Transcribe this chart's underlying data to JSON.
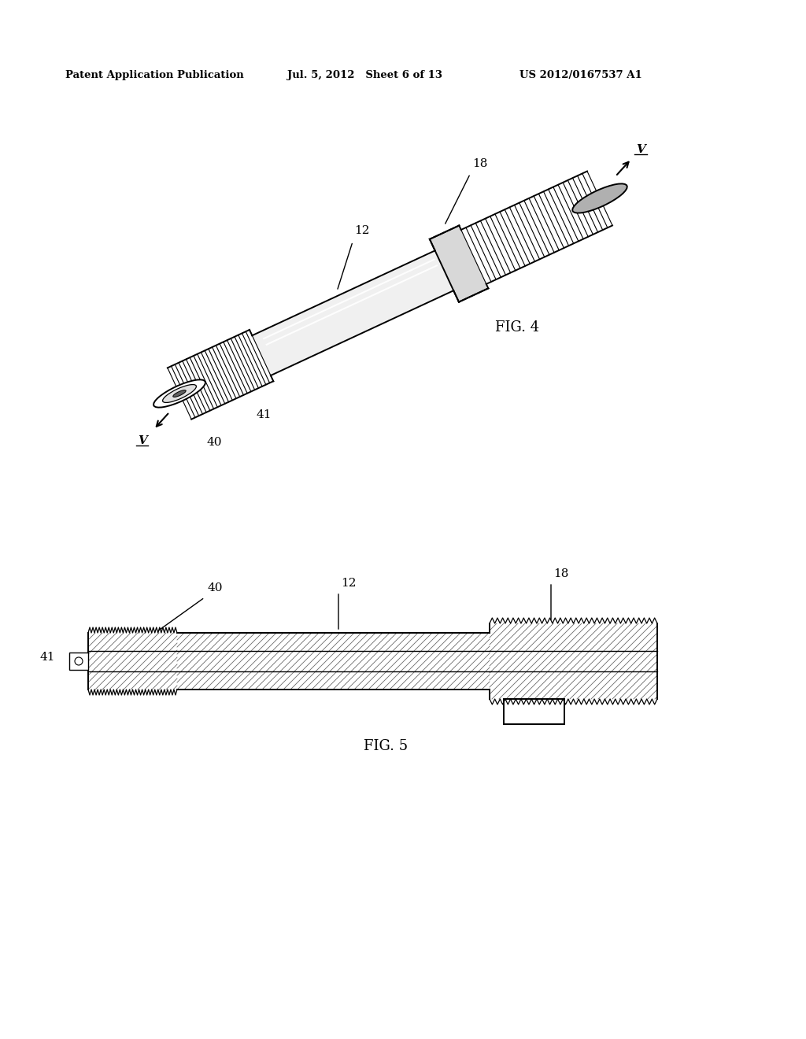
{
  "background_color": "#ffffff",
  "header_left": "Patent Application Publication",
  "header_center": "Jul. 5, 2012   Sheet 6 of 13",
  "header_right": "US 2012/0167537 A1",
  "fig4_label": "FIG. 4",
  "fig5_label": "FIG. 5",
  "label_12": "12",
  "label_18": "18",
  "label_40": "40",
  "label_41": "41",
  "label_V": "V"
}
